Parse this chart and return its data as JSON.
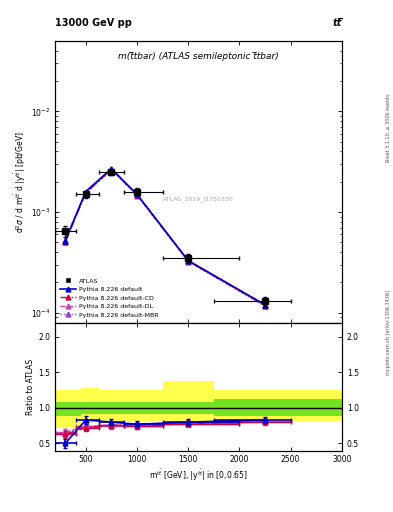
{
  "title_top": "13000 GeV pp",
  "title_right": "tt̅",
  "plot_title": "m(t̅tbar) (ATLAS semileptonic t̅tbar)",
  "watermark": "ATLAS_2019_I1750330",
  "rivet_label": "Rivet 3.1.10, ≥ 300k events",
  "mcplots_label": "mcplots.cern.ch [arXiv:1306.3436]",
  "xlabel": "m$^{t\\bar{t}}$ [GeV], |y$^{t\\bar{t}}$| in [0,0.65]",
  "ylabel": "d$^2$$\\sigma$ / d m$^{t\\bar{t}}$ d |y$^{t\\bar{t}}$| [pb/GeV]",
  "ylabel_ratio": "Ratio to ATLAS",
  "xlim": [
    200,
    3000
  ],
  "ylim_main": [
    8e-05,
    0.05
  ],
  "ylim_ratio": [
    0.4,
    2.2
  ],
  "yticks_ratio": [
    0.5,
    1.0,
    1.5,
    2.0
  ],
  "data_x": [
    300,
    500,
    750,
    1000,
    1500,
    2250
  ],
  "data_y": [
    0.00065,
    0.0015,
    0.0025,
    0.0016,
    0.00035,
    0.00013
  ],
  "data_xerr_lo": [
    100,
    100,
    125,
    125,
    250,
    500
  ],
  "data_xerr_hi": [
    100,
    125,
    125,
    250,
    500,
    250
  ],
  "data_yerr": [
    8e-05,
    0.00012,
    0.00015,
    0.00012,
    3e-05,
    1.5e-05
  ],
  "atlas_color": "black",
  "pythia_default_y": [
    0.00052,
    0.0016,
    0.0027,
    0.0015,
    0.00033,
    0.00012
  ],
  "pythia_CD_y": [
    0.0005,
    0.00155,
    0.00265,
    0.00148,
    0.000325,
    0.000118
  ],
  "pythia_DL_y": [
    0.00053,
    0.00158,
    0.00268,
    0.0015,
    0.000328,
    0.00012
  ],
  "pythia_MBR_y": [
    0.00051,
    0.00152,
    0.00262,
    0.00146,
    0.000322,
    0.000116
  ],
  "ratio_default_y": [
    0.5,
    0.83,
    0.8,
    0.77,
    0.8,
    0.83
  ],
  "ratio_CD_y": [
    0.63,
    0.72,
    0.76,
    0.74,
    0.78,
    0.8
  ],
  "ratio_DL_y": [
    0.66,
    0.74,
    0.75,
    0.76,
    0.79,
    0.82
  ],
  "ratio_MBR_y": [
    0.65,
    0.73,
    0.76,
    0.75,
    0.78,
    0.81
  ],
  "ratio_default_yerr": [
    0.06,
    0.05,
    0.04,
    0.04,
    0.04,
    0.04
  ],
  "ratio_CD_yerr": [
    0.05,
    0.04,
    0.04,
    0.04,
    0.04,
    0.04
  ],
  "ratio_DL_yerr": [
    0.05,
    0.04,
    0.04,
    0.04,
    0.04,
    0.04
  ],
  "ratio_MBR_yerr": [
    0.05,
    0.04,
    0.04,
    0.04,
    0.04,
    0.04
  ],
  "band_x_green": [
    200,
    450,
    625,
    875,
    1250,
    1750,
    2750
  ],
  "band_width_green": [
    250,
    175,
    250,
    375,
    500,
    1000,
    250
  ],
  "band_lo_green": [
    0.88,
    0.92,
    0.92,
    0.92,
    0.92,
    0.88,
    0.88
  ],
  "band_hi_green": [
    1.08,
    1.08,
    1.08,
    1.08,
    1.08,
    1.12,
    1.12
  ],
  "band_x_yellow": [
    200,
    450,
    625,
    875,
    1250,
    1750,
    2750
  ],
  "band_width_yellow": [
    250,
    175,
    250,
    375,
    500,
    1000,
    250
  ],
  "band_lo_yellow": [
    0.72,
    0.82,
    0.82,
    0.82,
    0.82,
    0.82,
    0.82
  ],
  "band_hi_yellow": [
    1.25,
    1.28,
    1.25,
    1.25,
    1.38,
    1.25,
    1.25
  ],
  "color_default": "#0000cc",
  "color_CD": "#cc0044",
  "color_DL": "#cc44aa",
  "color_MBR": "#8844cc",
  "bg_color": "#ffffff"
}
